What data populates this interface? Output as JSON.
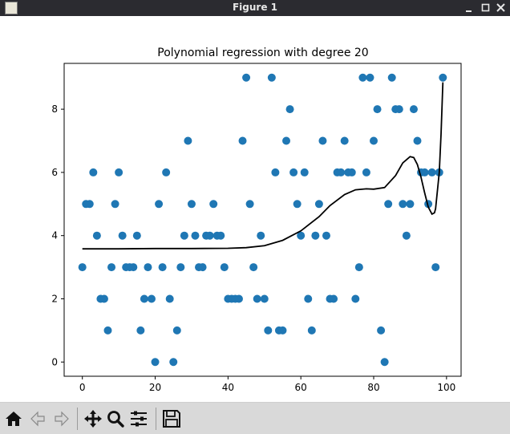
{
  "window": {
    "title": "Figure 1"
  },
  "toolbar": {
    "buttons": [
      {
        "name": "home-button",
        "icon": "home-icon"
      },
      {
        "name": "back-button",
        "icon": "back-arrow-icon"
      },
      {
        "name": "forward-button",
        "icon": "forward-arrow-icon"
      },
      {
        "name": "pan-button",
        "icon": "move-arrows-icon"
      },
      {
        "name": "zoom-button",
        "icon": "magnifier-icon"
      },
      {
        "name": "configure-subplots-button",
        "icon": "sliders-icon"
      },
      {
        "name": "save-button",
        "icon": "floppy-disk-icon"
      }
    ]
  },
  "chart_data": {
    "type": "scatter",
    "title": "Polynomial regression with degree 20",
    "xlabel": "",
    "ylabel": "",
    "xlim": [
      -5,
      104
    ],
    "ylim": [
      -0.45,
      9.45
    ],
    "xticks": [
      0,
      20,
      40,
      60,
      80,
      100
    ],
    "yticks": [
      0,
      2,
      4,
      6,
      8
    ],
    "grid": false,
    "colors": {
      "points": "#1f77b4",
      "fit_line": "#000000"
    },
    "series": [
      {
        "type": "scatter",
        "points": [
          [
            0,
            3
          ],
          [
            1,
            5
          ],
          [
            2,
            5
          ],
          [
            3,
            6
          ],
          [
            4,
            4
          ],
          [
            5,
            2
          ],
          [
            6,
            2
          ],
          [
            7,
            1
          ],
          [
            8,
            3
          ],
          [
            9,
            5
          ],
          [
            10,
            6
          ],
          [
            11,
            4
          ],
          [
            12,
            3
          ],
          [
            13,
            3
          ],
          [
            14,
            3
          ],
          [
            15,
            4
          ],
          [
            16,
            1
          ],
          [
            17,
            2
          ],
          [
            18,
            3
          ],
          [
            19,
            2
          ],
          [
            20,
            0
          ],
          [
            21,
            5
          ],
          [
            22,
            3
          ],
          [
            23,
            6
          ],
          [
            24,
            2
          ],
          [
            25,
            0
          ],
          [
            26,
            1
          ],
          [
            27,
            3
          ],
          [
            28,
            4
          ],
          [
            29,
            7
          ],
          [
            30,
            5
          ],
          [
            31,
            4
          ],
          [
            32,
            3
          ],
          [
            33,
            3
          ],
          [
            34,
            4
          ],
          [
            35,
            4
          ],
          [
            36,
            5
          ],
          [
            37,
            4
          ],
          [
            38,
            4
          ],
          [
            39,
            3
          ],
          [
            40,
            2
          ],
          [
            41,
            2
          ],
          [
            42,
            2
          ],
          [
            43,
            2
          ],
          [
            44,
            7
          ],
          [
            45,
            9
          ],
          [
            46,
            5
          ],
          [
            47,
            3
          ],
          [
            48,
            2
          ],
          [
            49,
            4
          ],
          [
            50,
            2
          ],
          [
            51,
            1
          ],
          [
            52,
            9
          ],
          [
            53,
            6
          ],
          [
            54,
            1
          ],
          [
            55,
            1
          ],
          [
            56,
            7
          ],
          [
            57,
            8
          ],
          [
            58,
            6
          ],
          [
            59,
            5
          ],
          [
            60,
            4
          ],
          [
            61,
            6
          ],
          [
            62,
            2
          ],
          [
            63,
            1
          ],
          [
            64,
            4
          ],
          [
            65,
            5
          ],
          [
            66,
            7
          ],
          [
            67,
            4
          ],
          [
            68,
            2
          ],
          [
            69,
            2
          ],
          [
            70,
            6
          ],
          [
            71,
            6
          ],
          [
            72,
            7
          ],
          [
            73,
            6
          ],
          [
            74,
            6
          ],
          [
            75,
            2
          ],
          [
            76,
            3
          ],
          [
            77,
            9
          ],
          [
            78,
            6
          ],
          [
            79,
            9
          ],
          [
            80,
            7
          ],
          [
            81,
            8
          ],
          [
            82,
            1
          ],
          [
            83,
            0
          ],
          [
            84,
            5
          ],
          [
            85,
            9
          ],
          [
            86,
            8
          ],
          [
            87,
            8
          ],
          [
            88,
            5
          ],
          [
            89,
            4
          ],
          [
            90,
            5
          ],
          [
            91,
            8
          ],
          [
            92,
            7
          ],
          [
            93,
            6
          ],
          [
            94,
            6
          ],
          [
            95,
            5
          ],
          [
            96,
            6
          ],
          [
            97,
            3
          ],
          [
            98,
            6
          ],
          [
            99,
            9
          ]
        ]
      },
      {
        "type": "line",
        "points": [
          [
            0,
            3.58
          ],
          [
            10,
            3.58
          ],
          [
            20,
            3.59
          ],
          [
            30,
            3.59
          ],
          [
            40,
            3.6
          ],
          [
            45,
            3.62
          ],
          [
            50,
            3.68
          ],
          [
            55,
            3.85
          ],
          [
            60,
            4.15
          ],
          [
            65,
            4.6
          ],
          [
            68,
            4.95
          ],
          [
            72,
            5.3
          ],
          [
            75,
            5.45
          ],
          [
            78,
            5.48
          ],
          [
            80,
            5.47
          ],
          [
            83,
            5.52
          ],
          [
            86,
            5.9
          ],
          [
            88,
            6.3
          ],
          [
            90,
            6.5
          ],
          [
            91,
            6.47
          ],
          [
            92,
            6.25
          ],
          [
            93,
            5.85
          ],
          [
            94,
            5.35
          ],
          [
            95,
            4.9
          ],
          [
            96,
            4.68
          ],
          [
            96.7,
            4.72
          ],
          [
            97,
            4.85
          ],
          [
            98,
            6.0
          ],
          [
            98.5,
            7.2
          ],
          [
            99,
            8.85
          ]
        ]
      }
    ]
  }
}
